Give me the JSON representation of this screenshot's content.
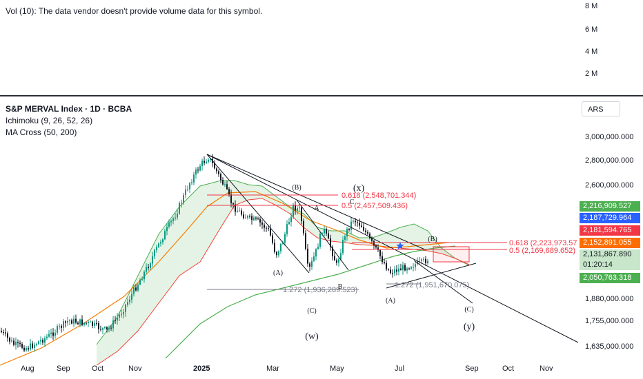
{
  "volume_pane": {
    "note": "Vol (10): The data vendor doesn't provide volume data for this symbol.",
    "ticks": [
      "8 M",
      "6 M",
      "4 M",
      "2 M"
    ]
  },
  "chart": {
    "title": "S&P MERVAL Index · 1D · BCBA",
    "indicators": [
      "Ichimoku (9, 26, 52, 26)",
      "MA Cross (50, 200)"
    ],
    "currency": "ARS"
  },
  "colors": {
    "up": "#089981",
    "down": "#131722",
    "ma50": "#f57c00",
    "ma200": "#4caf50",
    "cloud_green": "#4caf50",
    "cloud_red": "#f44336",
    "fib": "#f23645",
    "trend": "#131722"
  },
  "chart_data": {
    "type": "candlestick",
    "symbol": "S&P MERVAL Index",
    "interval": "1D",
    "exchange": "BCBA",
    "x_ticks": [
      "Aug",
      "Sep",
      "Oct",
      "Nov",
      "2025",
      "Mar",
      "May",
      "Jul",
      "Sep",
      "Oct",
      "Nov"
    ],
    "y_ticks": [
      "3,000,000.000",
      "2,800,000.000",
      "2,600,000.000",
      "1,880,000.000",
      "1,755,000.000",
      "1,635,000.000"
    ],
    "price_badges": [
      {
        "value": "2,216,909.527",
        "color": "#4caf50"
      },
      {
        "value": "2,187,729.964",
        "color": "#2962ff"
      },
      {
        "value": "2,181,594.765",
        "color": "#f23645"
      },
      {
        "value": "2,152,891.055",
        "color": "#ff6d00"
      },
      {
        "value": "2,131,867.890",
        "color": "#c8e6c9",
        "dark": true
      },
      {
        "value": "01:20:14",
        "color": "#c8e6c9",
        "dark": true
      },
      {
        "value": "2,050,763.318",
        "color": "#4caf50"
      }
    ],
    "fib_levels": [
      {
        "text": "0.618 (2,548,701.344)"
      },
      {
        "text": "0.5 (2,457,509.436)"
      },
      {
        "text": "0.618 (2,223,973.57"
      },
      {
        "text": "0.5 (2,169,689.652)"
      }
    ],
    "extension_levels": [
      {
        "text": "1.272 (1,936,289.523)"
      },
      {
        "text": "1.272 (1,951,670.075)"
      }
    ],
    "wave_labels": [
      "(B)",
      "(x)",
      "A",
      "C",
      "(B)",
      "(A)",
      "B",
      "(C)",
      "(w)",
      "(A)",
      "(C)",
      "(y)"
    ]
  }
}
